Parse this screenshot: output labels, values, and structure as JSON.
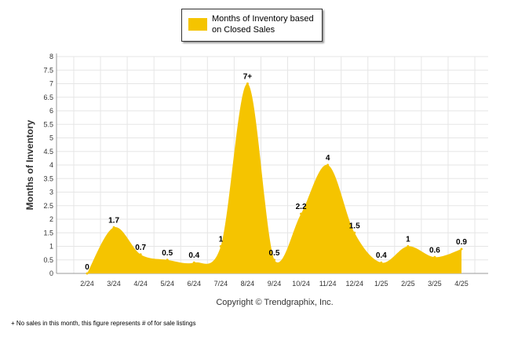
{
  "chart_data": {
    "type": "area",
    "title": "",
    "legend": {
      "label": "Months of Inventory based on Closed Sales",
      "placement": "top-center"
    },
    "ylabel": "Months of Inventory",
    "xlabel": "",
    "ylim": [
      0,
      8
    ],
    "y_ticks": [
      "0",
      "0.5",
      "1",
      "1.5",
      "2",
      "2.5",
      "3",
      "3.5",
      "4",
      "4.5",
      "5",
      "5.5",
      "6",
      "6.5",
      "7",
      "7.5",
      "8"
    ],
    "grid": true,
    "categories": [
      "2/24",
      "3/24",
      "4/24",
      "5/24",
      "6/24",
      "7/24",
      "8/24",
      "9/24",
      "10/24",
      "11/24",
      "12/24",
      "1/25",
      "2/25",
      "3/25",
      "4/25"
    ],
    "series": [
      {
        "name": "Months of Inventory based on Closed Sales",
        "values": [
          0,
          1.7,
          0.7,
          0.5,
          0.4,
          1,
          7,
          0.5,
          2.2,
          4,
          1.5,
          0.4,
          1,
          0.6,
          0.9
        ],
        "data_labels": [
          "0",
          "1.7",
          "0.7",
          "0.5",
          "0.4",
          "1",
          "7+",
          "0.5",
          "2.2",
          "4",
          "1.5",
          "0.4",
          "1",
          "0.6",
          "0.9"
        ]
      }
    ],
    "colors": {
      "fill": "#F5C400",
      "grid": "#E6E6E6",
      "axis": "#999999"
    }
  },
  "copyright": "Copyright © Trendgraphix, Inc.",
  "footnote": "+  No sales in this month, this figure represents # of for sale listings"
}
